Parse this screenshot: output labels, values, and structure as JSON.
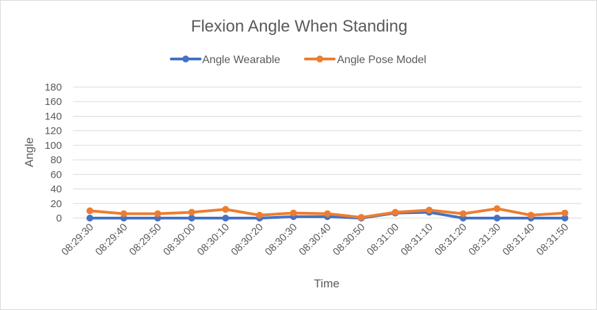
{
  "chart_data": {
    "type": "line",
    "title": "Flexion Angle When Standing",
    "xlabel": "Time",
    "ylabel": "Angle",
    "ylim": [
      0,
      180
    ],
    "yticks": [
      0,
      20,
      40,
      60,
      80,
      100,
      120,
      140,
      160,
      180
    ],
    "grid": true,
    "legend_position": "top",
    "categories": [
      "08:29:30",
      "08:29:40",
      "08:29:50",
      "08:30:00",
      "08:30:10",
      "08:30:20",
      "08:30:30",
      "08:30:40",
      "08:30:50",
      "08:31:00",
      "08:31:10",
      "08:31:20",
      "08:31:30",
      "08:31:40",
      "08:31:50"
    ],
    "series": [
      {
        "name": "Angle Wearable",
        "color": "#4472c4",
        "values": [
          0,
          0,
          0,
          0,
          0,
          0,
          2,
          2,
          0,
          7,
          8,
          0,
          0,
          0,
          0
        ]
      },
      {
        "name": "Angle Pose Model",
        "color": "#ed7d31",
        "values": [
          10,
          6,
          6,
          8,
          12,
          4,
          7,
          6,
          1,
          8,
          11,
          6,
          13,
          4,
          7
        ]
      }
    ]
  }
}
